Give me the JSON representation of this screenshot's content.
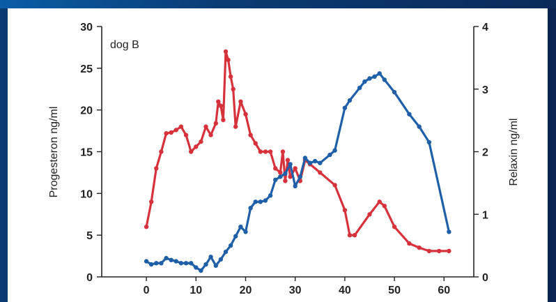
{
  "chart_data": {
    "type": "line",
    "annotation": "dog B",
    "xlabel": "",
    "ylabel_left": "Progesteron ng/ml",
    "ylabel_right": "Relaxin ng/ml",
    "xlim": [
      -9,
      66
    ],
    "ylim_left": [
      0,
      30
    ],
    "ylim_right": [
      0,
      4
    ],
    "x_ticks": [
      0,
      10,
      20,
      30,
      40,
      50,
      60
    ],
    "y_left_ticks": [
      0,
      5,
      10,
      15,
      20,
      25,
      30
    ],
    "y_right_ticks": [
      0,
      1,
      2,
      3,
      4
    ],
    "grid": false,
    "legend": "none",
    "series": [
      {
        "axis": "left",
        "color": "#d6323c",
        "points": [
          [
            0,
            6
          ],
          [
            1,
            9
          ],
          [
            2,
            13
          ],
          [
            3,
            15
          ],
          [
            4,
            17.2
          ],
          [
            5,
            17.3
          ],
          [
            6,
            17.6
          ],
          [
            7,
            18
          ],
          [
            8,
            17
          ],
          [
            9,
            15
          ],
          [
            10,
            15.6
          ],
          [
            11,
            16.2
          ],
          [
            12,
            18
          ],
          [
            13,
            17
          ],
          [
            14,
            18.4
          ],
          [
            14.5,
            21
          ],
          [
            15,
            20.5
          ],
          [
            15.5,
            18.8
          ],
          [
            16,
            27
          ],
          [
            16.5,
            26
          ],
          [
            17,
            24
          ],
          [
            17.5,
            22.5
          ],
          [
            18,
            18
          ],
          [
            19,
            21
          ],
          [
            20,
            19.5
          ],
          [
            21,
            17
          ],
          [
            22,
            16
          ],
          [
            23,
            15
          ],
          [
            24,
            15
          ],
          [
            25,
            15
          ],
          [
            26,
            13
          ],
          [
            27,
            12.5
          ],
          [
            27.5,
            15
          ],
          [
            28,
            11.5
          ],
          [
            28.5,
            14
          ],
          [
            29,
            12
          ],
          [
            30,
            13
          ],
          [
            31,
            11.5
          ],
          [
            32,
            14
          ],
          [
            33,
            13.5
          ],
          [
            35,
            12.5
          ],
          [
            38,
            11
          ],
          [
            40,
            8
          ],
          [
            41,
            5
          ],
          [
            42,
            5
          ],
          [
            45,
            7.5
          ],
          [
            47,
            9
          ],
          [
            48,
            8.5
          ],
          [
            50,
            6
          ],
          [
            53,
            4
          ],
          [
            55,
            3.5
          ],
          [
            57,
            3.1
          ],
          [
            59,
            3.1
          ],
          [
            61,
            3.1
          ]
        ]
      },
      {
        "axis": "right",
        "color": "#1f5fa8",
        "points": [
          [
            0,
            0.25
          ],
          [
            1,
            0.2
          ],
          [
            2,
            0.22
          ],
          [
            3,
            0.22
          ],
          [
            4,
            0.3
          ],
          [
            5,
            0.27
          ],
          [
            6,
            0.25
          ],
          [
            7,
            0.22
          ],
          [
            8,
            0.22
          ],
          [
            9,
            0.22
          ],
          [
            10,
            0.15
          ],
          [
            11,
            0.1
          ],
          [
            12,
            0.2
          ],
          [
            13,
            0.32
          ],
          [
            14,
            0.18
          ],
          [
            15,
            0.28
          ],
          [
            16,
            0.4
          ],
          [
            17,
            0.5
          ],
          [
            18,
            0.65
          ],
          [
            19,
            0.8
          ],
          [
            20,
            0.72
          ],
          [
            21,
            1.1
          ],
          [
            22,
            1.2
          ],
          [
            23,
            1.2
          ],
          [
            24,
            1.22
          ],
          [
            25,
            1.3
          ],
          [
            26,
            1.55
          ],
          [
            27,
            1.6
          ],
          [
            28,
            1.65
          ],
          [
            29,
            1.8
          ],
          [
            30,
            1.45
          ],
          [
            31,
            1.6
          ],
          [
            32,
            1.9
          ],
          [
            33,
            1.82
          ],
          [
            34,
            1.85
          ],
          [
            35,
            1.82
          ],
          [
            37,
            1.95
          ],
          [
            38,
            2.02
          ],
          [
            40,
            2.7
          ],
          [
            41,
            2.82
          ],
          [
            43,
            3.02
          ],
          [
            44,
            3.12
          ],
          [
            45,
            3.17
          ],
          [
            46,
            3.2
          ],
          [
            47,
            3.25
          ],
          [
            48,
            3.15
          ],
          [
            50,
            2.95
          ],
          [
            53,
            2.6
          ],
          [
            55,
            2.4
          ],
          [
            57,
            2.15
          ],
          [
            61,
            0.72
          ]
        ]
      }
    ]
  }
}
